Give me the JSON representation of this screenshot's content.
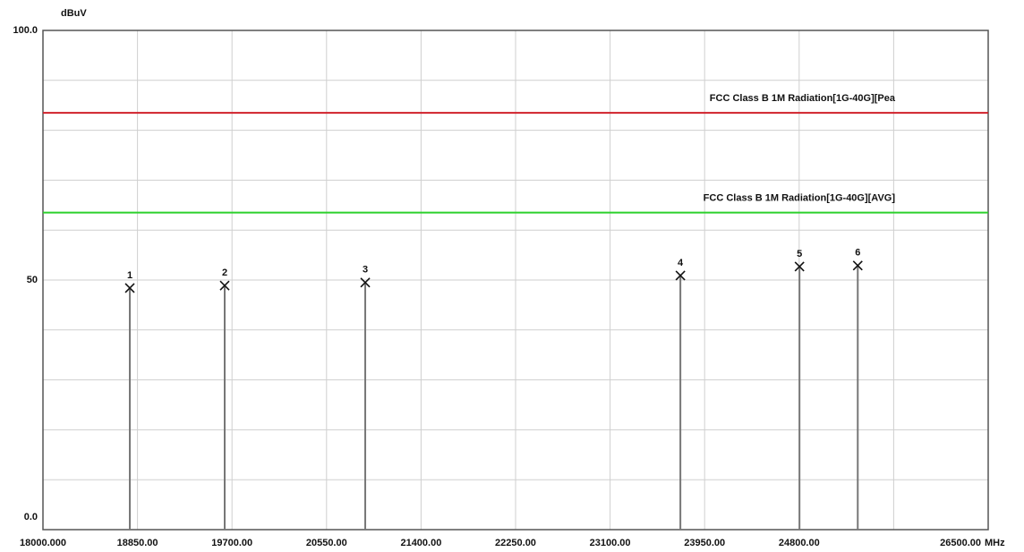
{
  "chart_data": {
    "type": "spectrum",
    "y_unit": "dBuV",
    "x_unit": "MHz",
    "xlim": [
      18000,
      26500
    ],
    "ylim": [
      0,
      100
    ],
    "xticks": [
      {
        "value": 18000,
        "label": "18000.000"
      },
      {
        "value": 18850,
        "label": "18850.00"
      },
      {
        "value": 19700,
        "label": "19700.00"
      },
      {
        "value": 20550,
        "label": "20550.00"
      },
      {
        "value": 21400,
        "label": "21400.00"
      },
      {
        "value": 22250,
        "label": "22250.00"
      },
      {
        "value": 23100,
        "label": "23100.00"
      },
      {
        "value": 23950,
        "label": "23950.00"
      },
      {
        "value": 24800,
        "label": "24800.00"
      },
      {
        "value": 26500,
        "label": "26500.00"
      }
    ],
    "xgrid": [
      18000,
      18850,
      19700,
      20550,
      21400,
      22250,
      23100,
      23950,
      24800,
      25650,
      26500
    ],
    "yticks": [
      {
        "value": 0,
        "label": "0.0"
      },
      50,
      {
        "value": 100,
        "label": "100.0"
      }
    ],
    "ygrid": [
      0,
      10,
      20,
      30,
      40,
      50,
      60,
      70,
      80,
      90,
      100
    ],
    "grid": true,
    "limits": [
      {
        "name": "FCC Class B 1M Radiation[1G-40G][Pea",
        "color": "#d0202a",
        "value": 83.5
      },
      {
        "name": "FCC Class B 1M Radiation[1G-40G][AVG]",
        "color": "#2cd12c",
        "value": 63.5
      }
    ],
    "point_labels": [
      "1",
      "2",
      "3",
      "4",
      "5",
      "6"
    ],
    "x": [
      18781,
      19634,
      20898,
      23732,
      24803,
      25327
    ],
    "values": [
      48.4,
      48.9,
      49.5,
      50.9,
      52.7,
      52.9
    ],
    "color": "#777777"
  }
}
